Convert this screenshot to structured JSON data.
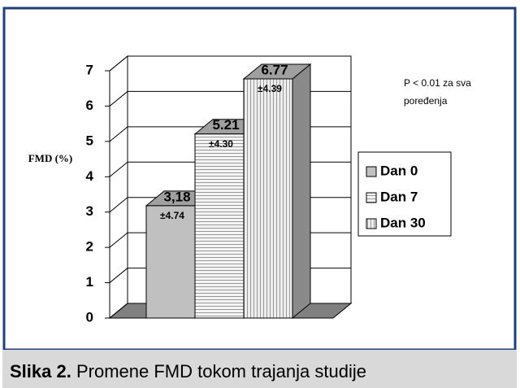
{
  "chart_data": {
    "type": "bar",
    "y_label": "FMD (%)",
    "categories": [
      "Dan 0",
      "Dan 7",
      "Dan 30"
    ],
    "values": [
      3.18,
      5.21,
      6.77
    ],
    "value_labels": [
      "3,18",
      "5.21",
      "6.77"
    ],
    "errors": [
      4.74,
      4.3,
      4.39
    ],
    "error_labels": [
      "±4.74",
      "±4.30",
      "±4.39"
    ],
    "colors": [
      "#c0c0c0",
      "#e8e8e8",
      "#dcdcdc"
    ],
    "patterns": [
      "solid",
      "horizontal",
      "vertical"
    ],
    "ylim": [
      0,
      7
    ],
    "yticks": [
      0,
      1,
      2,
      3,
      4,
      5,
      6,
      7
    ],
    "grid": true,
    "legend": "right",
    "annotation": [
      "P < 0.01 za sva",
      "poređenja"
    ]
  },
  "caption": {
    "label": "Slika 2.",
    "text": " Promene FMD tokom trajanja studije"
  }
}
